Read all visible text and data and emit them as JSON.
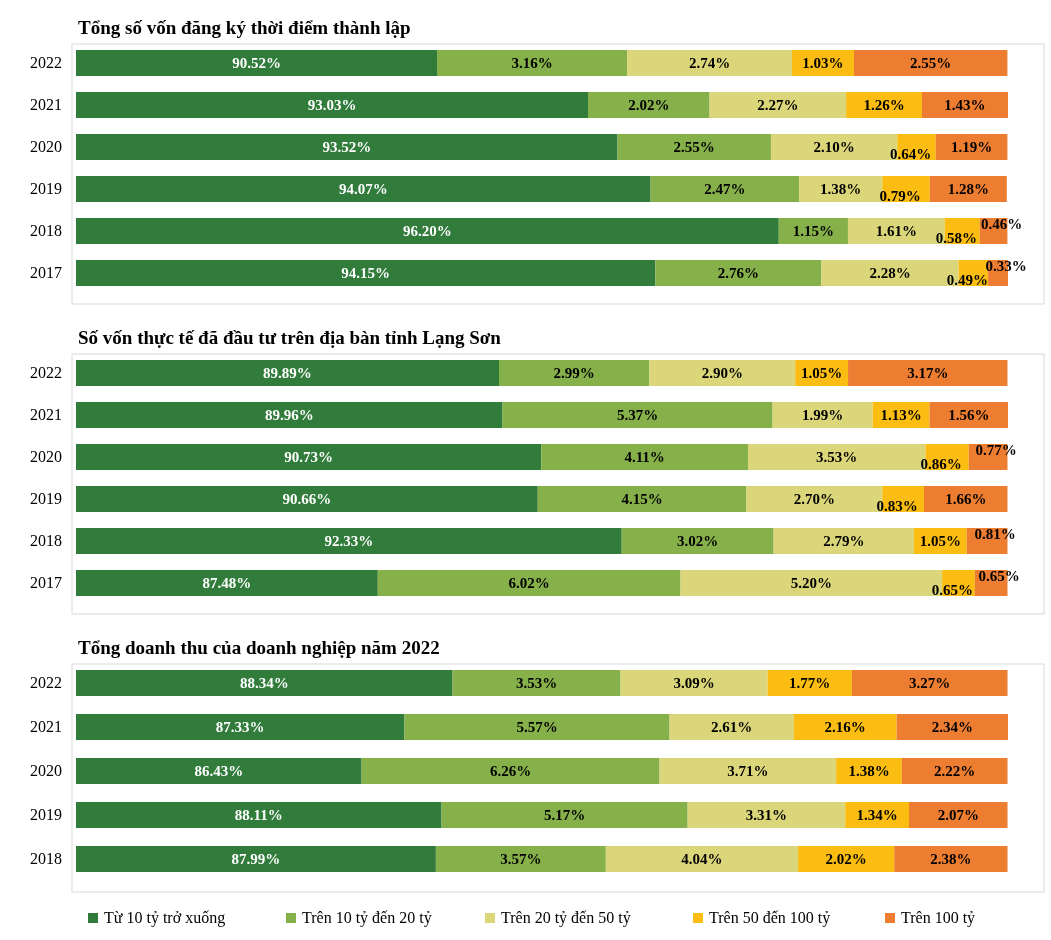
{
  "chart_data": [
    {
      "type": "bar",
      "title": "Tổng số vốn đăng ký thời điểm thành lập",
      "orientation": "horizontal",
      "stacked": true,
      "tick_labels": "y",
      "legend": false,
      "categories": [
        "2022",
        "2021",
        "2020",
        "2019",
        "2018",
        "2017"
      ],
      "series": [
        {
          "color": "#317b3b",
          "values": [
            90.52,
            93.03,
            93.52,
            94.07,
            96.2,
            94.15
          ],
          "value_labels": [
            "90.52%",
            "93.03%",
            "93.52%",
            "94.07%",
            "96.20%",
            "94.15%"
          ]
        },
        {
          "color": "#86b04a",
          "values": [
            3.16,
            2.02,
            2.55,
            2.47,
            1.15,
            2.76
          ],
          "value_labels": [
            "3.16%",
            "2.02%",
            "2.55%",
            "2.47%",
            "1.15%",
            "2.76%"
          ]
        },
        {
          "color": "#dcd67a",
          "values": [
            2.74,
            2.27,
            2.1,
            1.38,
            1.61,
            2.28
          ],
          "value_labels": [
            "2.74%",
            "2.27%",
            "2.10%",
            "1.38%",
            "1.61%",
            "2.28%"
          ]
        },
        {
          "color": "#fbbd11",
          "values": [
            1.03,
            1.26,
            0.64,
            0.79,
            0.58,
            0.49
          ],
          "value_labels": [
            "1.03%",
            "1.26%",
            "0.64%",
            "0.79%",
            "0.58%",
            "0.49%"
          ]
        },
        {
          "color": "#ed7d31",
          "values": [
            2.55,
            1.43,
            1.19,
            1.28,
            0.46,
            0.33
          ],
          "value_labels": [
            "2.55%",
            "1.43%",
            "1.19%",
            "1.28%",
            "0.46%",
            "0.33%"
          ]
        }
      ]
    },
    {
      "type": "bar",
      "title": "Số vốn thực tế đã đầu tư trên địa bàn tỉnh Lạng Sơn",
      "orientation": "horizontal",
      "stacked": true,
      "tick_labels": "y",
      "legend": false,
      "categories": [
        "2022",
        "2021",
        "2020",
        "2019",
        "2018",
        "2017"
      ],
      "series": [
        {
          "color": "#317b3b",
          "values": [
            89.89,
            89.96,
            90.73,
            90.66,
            92.33,
            87.48
          ],
          "value_labels": [
            "89.89%",
            "89.96%",
            "90.73%",
            "90.66%",
            "92.33%",
            "87.48%"
          ]
        },
        {
          "color": "#86b04a",
          "values": [
            2.99,
            5.37,
            4.11,
            4.15,
            3.02,
            6.02
          ],
          "value_labels": [
            "2.99%",
            "5.37%",
            "4.11%",
            "4.15%",
            "3.02%",
            "6.02%"
          ]
        },
        {
          "color": "#dcd67a",
          "values": [
            2.9,
            1.99,
            3.53,
            2.7,
            2.79,
            5.2
          ],
          "value_labels": [
            "2.90%",
            "1.99%",
            "3.53%",
            "2.70%",
            "2.79%",
            "5.20%"
          ]
        },
        {
          "color": "#fbbd11",
          "values": [
            1.05,
            1.13,
            0.86,
            0.83,
            1.05,
            0.65
          ],
          "value_labels": [
            "1.05%",
            "1.13%",
            "0.86%",
            "0.83%",
            "1.05%",
            "0.65%"
          ]
        },
        {
          "color": "#ed7d31",
          "values": [
            3.17,
            1.56,
            0.77,
            1.66,
            0.81,
            0.65
          ],
          "value_labels": [
            "3.17%",
            "1.56%",
            "0.77%",
            "1.66%",
            "0.81%",
            "0.65%"
          ]
        }
      ]
    },
    {
      "type": "bar",
      "title": "Tổng doanh thu của doanh nghiệp năm 2022",
      "orientation": "horizontal",
      "stacked": true,
      "tick_labels": "y",
      "legend": "bottom",
      "categories": [
        "2022",
        "2021",
        "2020",
        "2019",
        "2018"
      ],
      "series": [
        {
          "name": "Từ 10 tỷ trở xuống",
          "color": "#317b3b",
          "values": [
            88.34,
            87.33,
            86.43,
            88.11,
            87.99
          ],
          "value_labels": [
            "88.34%",
            "87.33%",
            "86.43%",
            "88.11%",
            "87.99%"
          ]
        },
        {
          "name": "Trên 10 tỷ đến 20 tỷ",
          "color": "#86b04a",
          "values": [
            3.53,
            5.57,
            6.26,
            5.17,
            3.57
          ],
          "value_labels": [
            "3.53%",
            "5.57%",
            "6.26%",
            "5.17%",
            "3.57%"
          ]
        },
        {
          "name": "Trên 20 tỷ đến 50 tỷ",
          "color": "#dcd67a",
          "values": [
            3.09,
            2.61,
            3.71,
            3.31,
            4.04
          ],
          "value_labels": [
            "3.09%",
            "2.61%",
            "3.71%",
            "3.31%",
            "4.04%"
          ]
        },
        {
          "name": "Trên 50 đến 100 tỷ",
          "color": "#fbbd11",
          "values": [
            1.77,
            2.16,
            1.38,
            1.34,
            2.02
          ],
          "value_labels": [
            "1.77%",
            "2.16%",
            "1.38%",
            "1.34%",
            "2.02%"
          ]
        },
        {
          "name": "Trên 100 tỷ",
          "color": "#ed7d31",
          "values": [
            3.27,
            2.34,
            2.22,
            2.07,
            2.38
          ],
          "value_labels": [
            "3.27%",
            "2.34%",
            "2.22%",
            "2.07%",
            "2.38%"
          ]
        }
      ]
    }
  ]
}
